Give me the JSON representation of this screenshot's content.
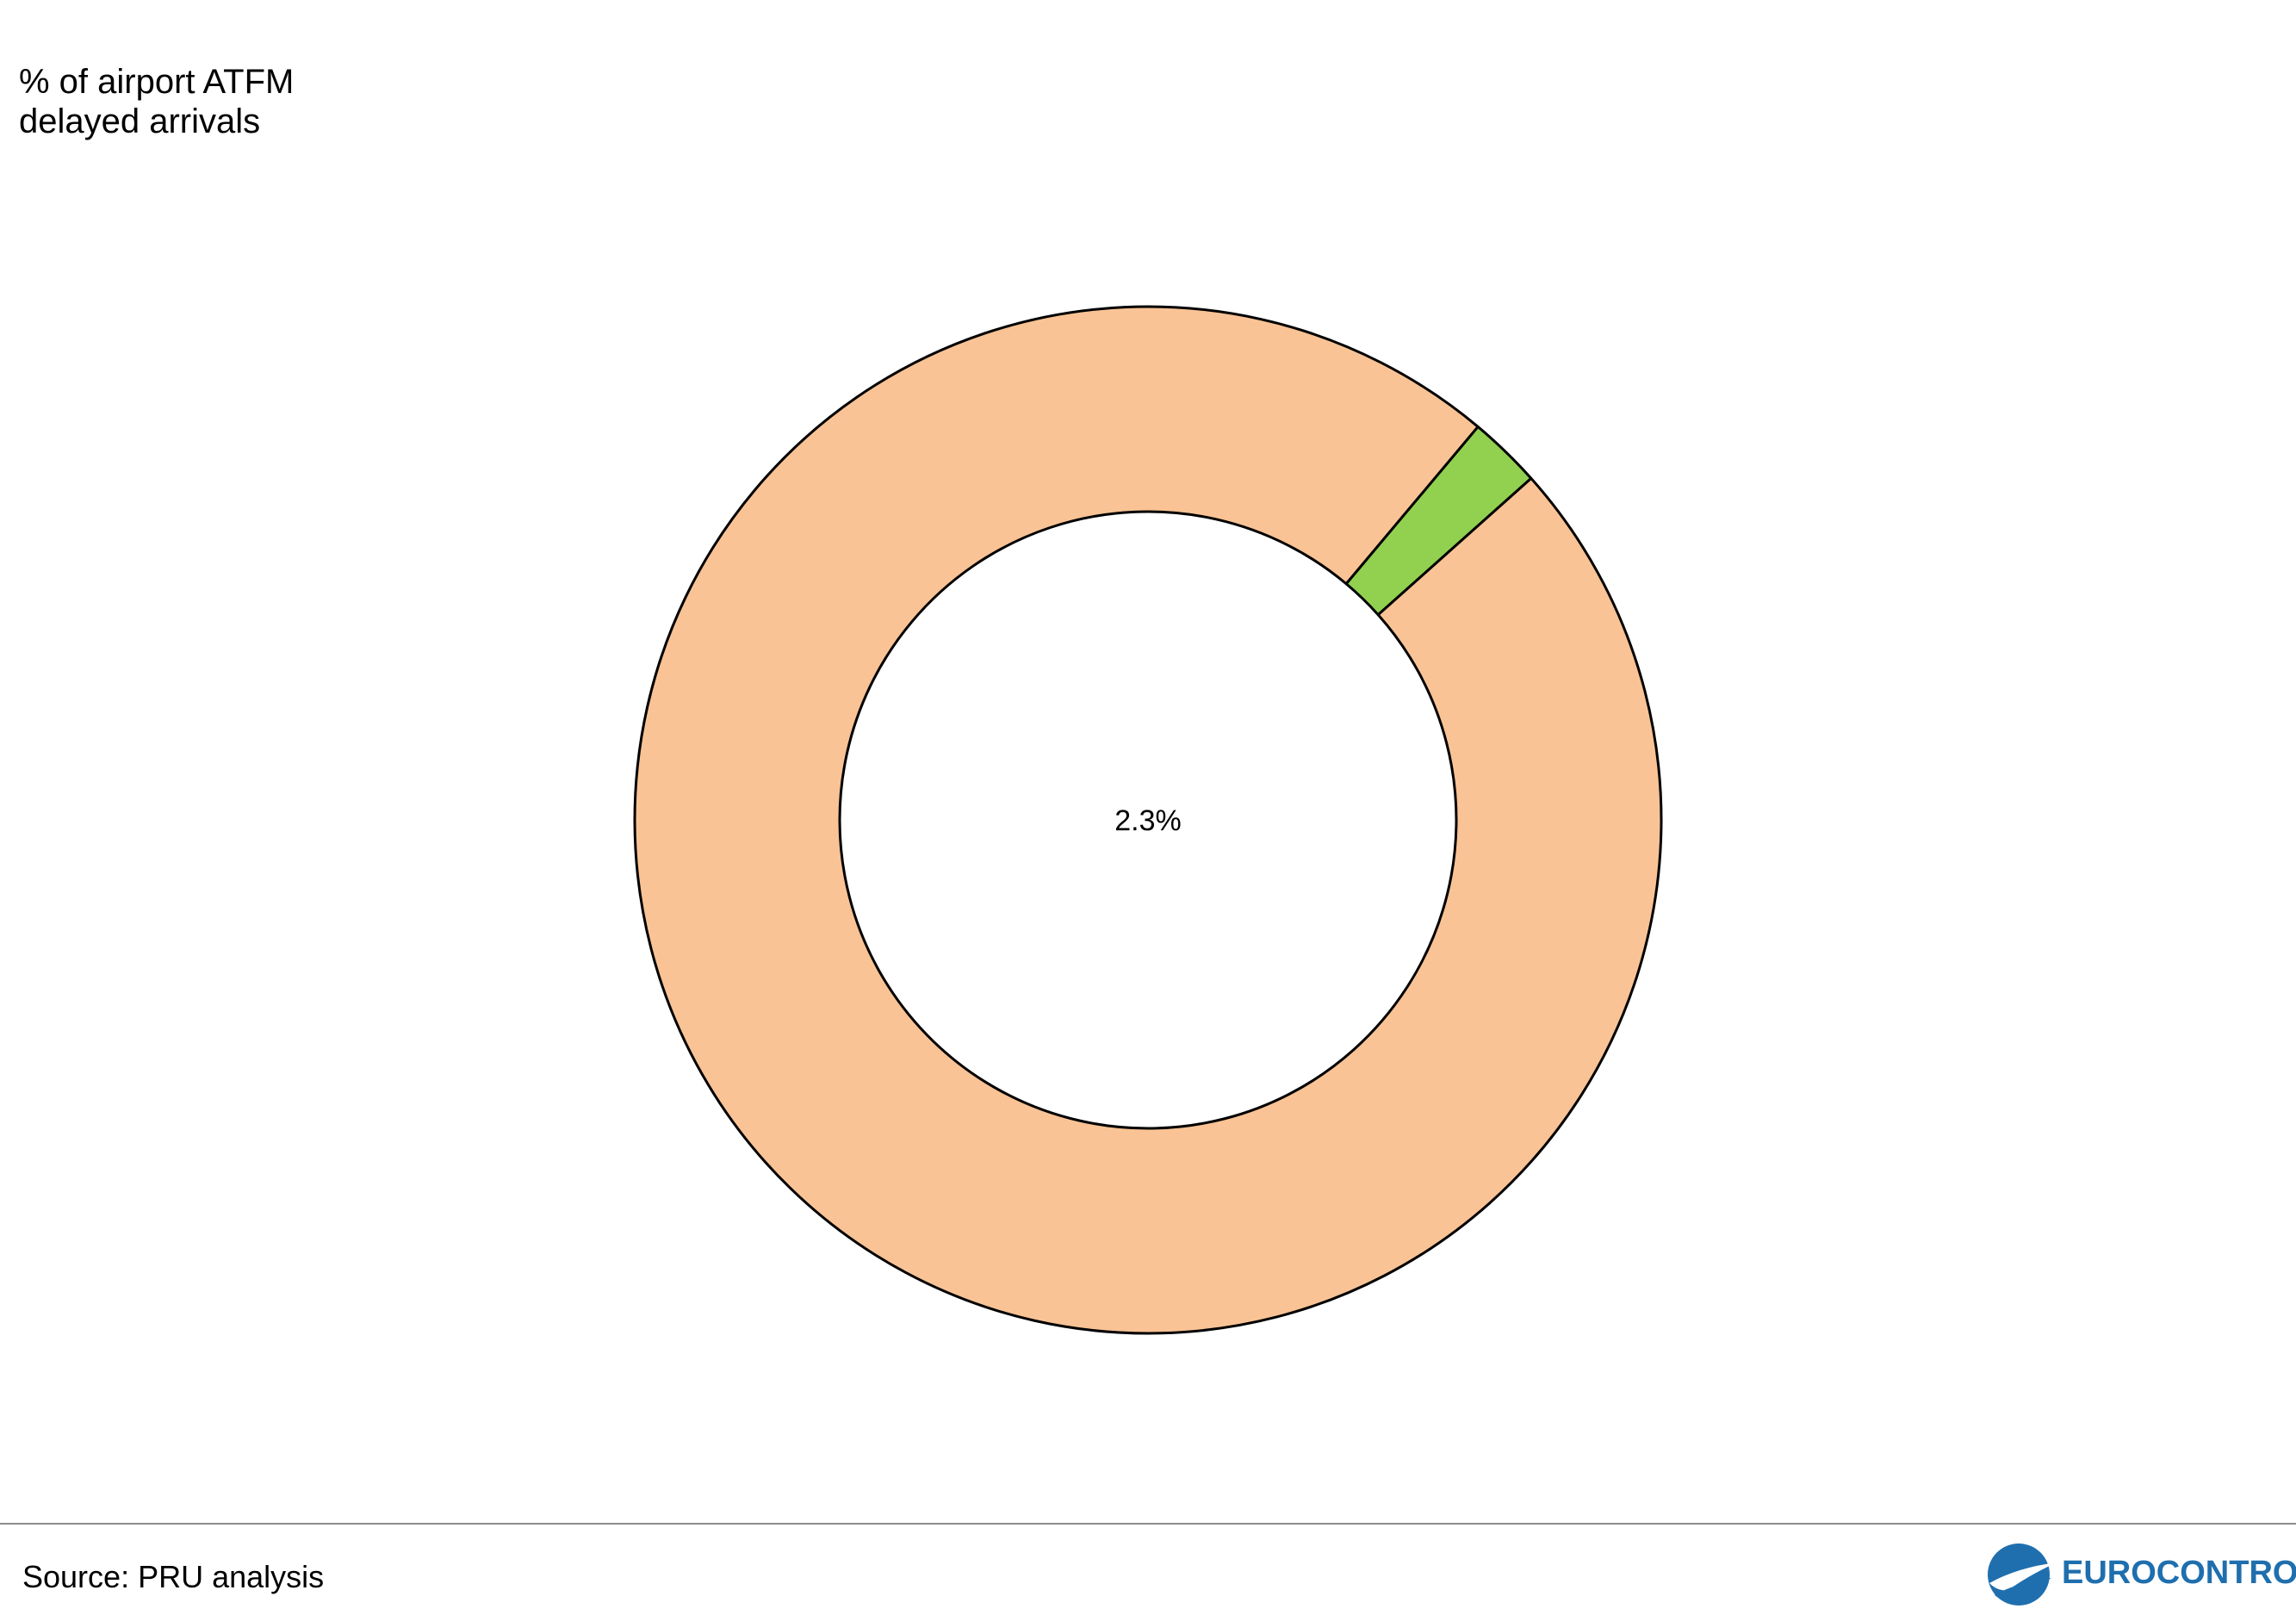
{
  "chart_data": {
    "type": "pie",
    "variant": "donut",
    "title": "% of airport ATFM delayed arrivals",
    "title_lines": [
      "% of airport ATFM",
      "delayed arrivals"
    ],
    "center_label": "2.3%",
    "slices": [
      {
        "value": 2.3,
        "color": "#92d050"
      },
      {
        "value": 97.7,
        "color": "#f9c395"
      }
    ],
    "start_angle_deg": 40,
    "direction": "clockwise",
    "stroke_color": "#000000"
  },
  "footer": {
    "source": "Source: PRU analysis",
    "logo_text": "EUROCONTROL",
    "logo_icon": "eurocontrol-logo-icon",
    "logo_color": "#1f6fae",
    "divider_color": "#8c8c8c"
  }
}
